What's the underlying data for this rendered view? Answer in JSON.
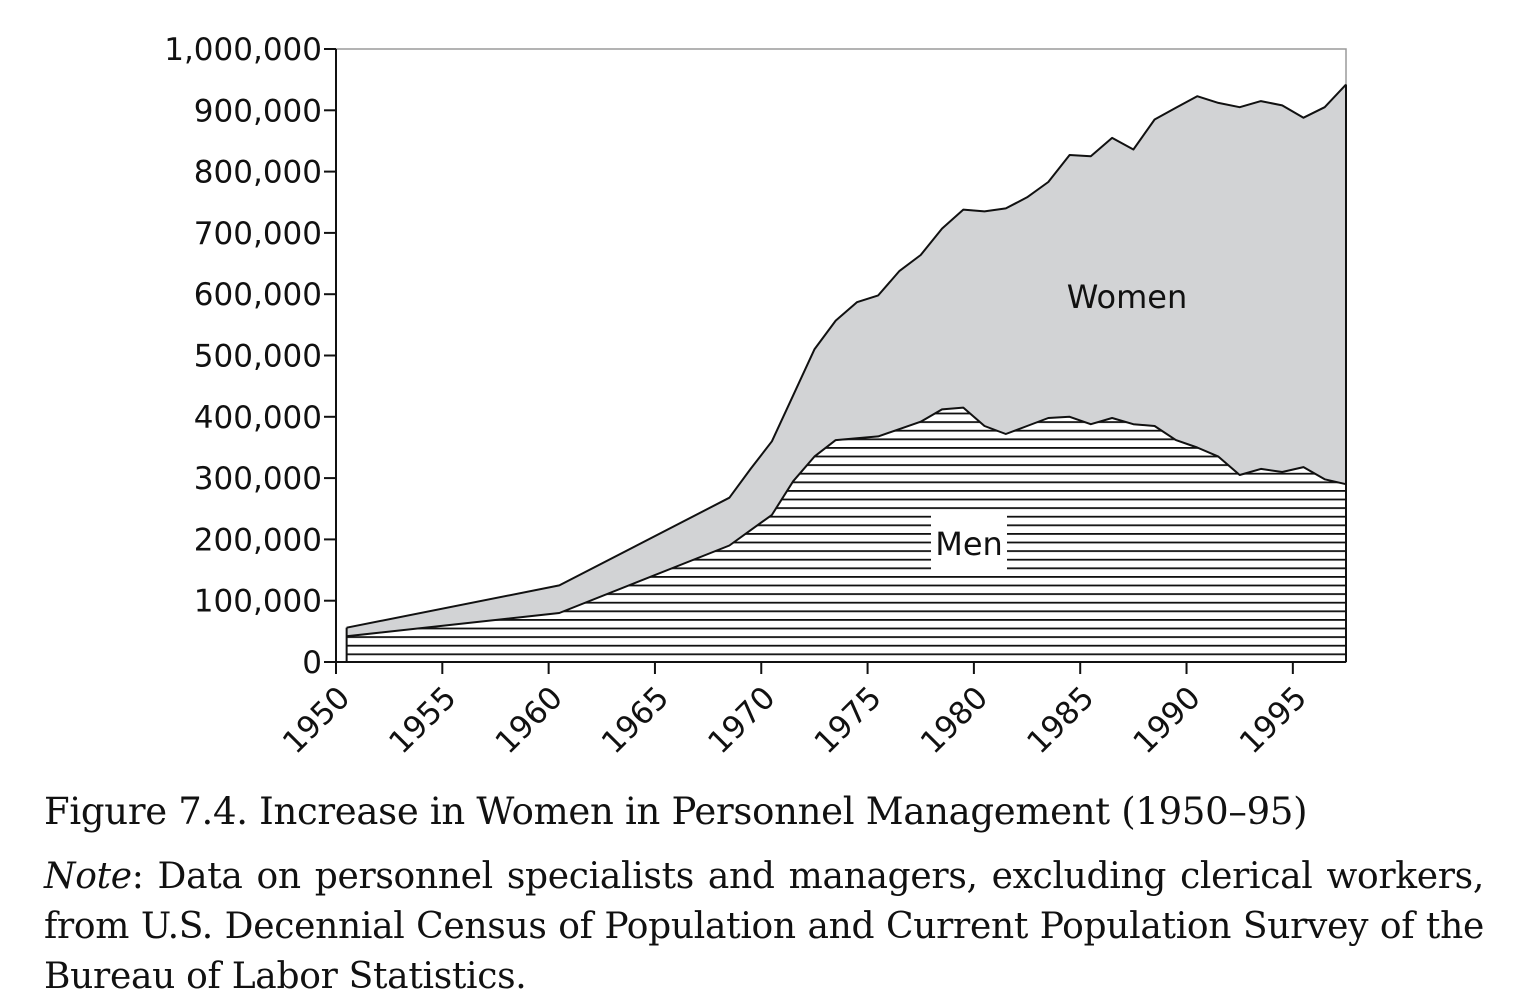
{
  "chart_data": {
    "type": "area",
    "stacked": true,
    "title": "Figure 7.4. Increase in Women in Personnel Management (1950–95)",
    "xlabel": "",
    "ylabel": "",
    "xlim": [
      1950,
      1997.5
    ],
    "ylim": [
      0,
      1000000
    ],
    "x_ticks": [
      1950,
      1955,
      1960,
      1965,
      1970,
      1975,
      1980,
      1985,
      1990,
      1995
    ],
    "x_tick_labels": [
      "1950",
      "1955",
      "1960",
      "1965",
      "1970",
      "1975",
      "1980",
      "1985",
      "1990",
      "1995"
    ],
    "y_ticks": [
      0,
      100000,
      200000,
      300000,
      400000,
      500000,
      600000,
      700000,
      800000,
      900000,
      1000000
    ],
    "y_tick_labels": [
      "0",
      "100,000",
      "200,000",
      "300,000",
      "400,000",
      "500,000",
      "600,000",
      "700,000",
      "800,000",
      "900,000",
      "1,000,000"
    ],
    "grid": false,
    "legend": "inline labels",
    "series_labels": [
      "Men",
      "Women"
    ],
    "x": [
      1950.5,
      1960.5,
      1968.5,
      1969.5,
      1970.5,
      1971.5,
      1972.5,
      1973.5,
      1974.5,
      1975.5,
      1976.5,
      1977.5,
      1978.5,
      1979.5,
      1980.5,
      1981.5,
      1982.5,
      1983.5,
      1984.5,
      1985.5,
      1986.5,
      1987.5,
      1988.5,
      1989.5,
      1990.5,
      1991.5,
      1992.5,
      1993.5,
      1994.5,
      1995.5,
      1996.5,
      1997.5
    ],
    "series": [
      {
        "name": "Men",
        "fill": "hatched horizontal lines",
        "values": [
          42000,
          80000,
          190000,
          215000,
          240000,
          295000,
          335000,
          362000,
          365000,
          368000,
          380000,
          392000,
          412000,
          415000,
          385000,
          372000,
          385000,
          398000,
          400000,
          388000,
          398000,
          388000,
          385000,
          362000,
          350000,
          335000,
          305000,
          315000,
          310000,
          318000,
          298000,
          290000
        ]
      },
      {
        "name": "Women",
        "fill": "#d2d3d5",
        "values": [
          14000,
          45000,
          78000,
          100000,
          120000,
          140000,
          175000,
          195000,
          222000,
          230000,
          258000,
          272000,
          295000,
          323000,
          350000,
          368000,
          373000,
          385000,
          427000,
          437000,
          457000,
          448000,
          500000,
          542000,
          573000,
          577000,
          600000,
          600000,
          598000,
          570000,
          607000,
          652000
        ]
      }
    ],
    "colors": {
      "women_fill": "#d2d3d5",
      "men_fill": "#ffffff",
      "line": "#111111"
    }
  },
  "caption": {
    "figure_title": "Figure 7.4. Increase in Women in Personnel Management (1950–95)",
    "note_lead": "Note",
    "note_text": ": Data on personnel specialists and managers, excluding clerical workers, from U.S. Decennial Census of Population and Current Population Survey of the Bureau of Labor Statistics."
  }
}
